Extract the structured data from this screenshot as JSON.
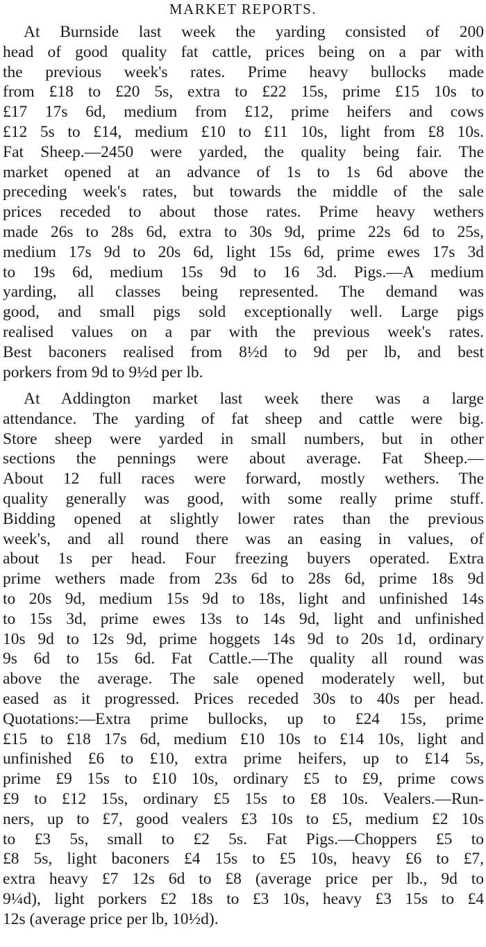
{
  "article": {
    "title": "MARKET REPORTS.",
    "paragraphs": [
      {
        "lines": [
          "At Burnside last week the yarding consisted of 200",
          "head of good quality fat cattle, prices being on a par with",
          "the previous week's rates. Prime heavy bullocks made",
          "from £18 to £20 5s, extra to £22 15s, prime £15 10s to",
          "£17 17s 6d, medium from £12, prime heifers and cows",
          "£12 5s to £14, medium £10 to £11 10s, light from £8 10s.",
          "Fat Sheep.—2450 were yarded, the quality being fair. The",
          "market opened at an advance of 1s to 1s 6d above the",
          "preceding week's rates, but towards the middle of the sale",
          "prices receded to about those rates. Prime heavy wethers",
          "made 26s to 28s 6d, extra to 30s 9d, prime 22s 6d to 25s,",
          "medium 17s 9d to 20s 6d, light 15s 6d, prime ewes 17s 3d",
          "to 19s 6d, medium 15s 9d to 16 3d. Pigs.—A medium",
          "yarding, all classes being represented. The demand was",
          "good, and small pigs sold exceptionally well. Large pigs",
          "realised values on a par with the previous week's rates.",
          "Best baconers realised from 8½d to 9d per lb, and best",
          "porkers from 9d to 9½d per lb."
        ]
      },
      {
        "lines": [
          "At Addington market last week there was a large",
          "attendance. The yarding of fat sheep and cattle were big.",
          "Store sheep were yarded in small numbers, but in other",
          "sections the pennings were about average. Fat Sheep.—",
          "About 12 full races were forward, mostly wethers. The",
          "quality generally was good, with some really prime stuff.",
          "Bidding opened at slightly lower rates than the previous",
          "week's, and all round there was an easing in values, of",
          "about 1s per head. Four freezing buyers operated. Extra",
          "prime wethers made from 23s 6d to 28s 6d, prime 18s 9d",
          "to 20s 9d, medium 15s 9d to 18s, light and unfinished 14s",
          "to 15s 3d, prime ewes 13s to 14s 9d, light and unfinished",
          "10s 9d to 12s 9d, prime hoggets 14s 9d to 20s 1d, ordinary",
          "9s 6d to 15s 6d. Fat Cattle.—The quality all round was",
          "above the average. The sale opened moderately well, but",
          "eased as it progressed. Prices receded 30s to 40s per head.",
          "Quotations:—Extra prime bullocks, up to £24 15s, prime",
          "£15 to £18 17s 6d, medium £10 10s to £14 10s, light and",
          "unfinished £6 to £10, extra prime heifers, up to £14 5s,",
          "prime £9 15s to £10 10s, ordinary £5 to £9, prime cows",
          "£9 to £12 15s, ordinary £5 15s to £8 10s. Vealers.—Run-",
          "ners, up to £7, good vealers £3 10s to £5, medium £2 10s",
          "to £3 5s, small to £2 5s. Fat Pigs.—Choppers £5 to",
          "£8 5s, light baconers £4 15s to £5 10s, heavy £6 to £7,",
          "extra heavy £7 12s 6d to £8 (average price per lb., 9d to",
          "9¼d), light porkers £2 18s to £3 10s, heavy £3 15s to £4",
          "12s (average price per lb, 10½d)."
        ]
      }
    ]
  }
}
